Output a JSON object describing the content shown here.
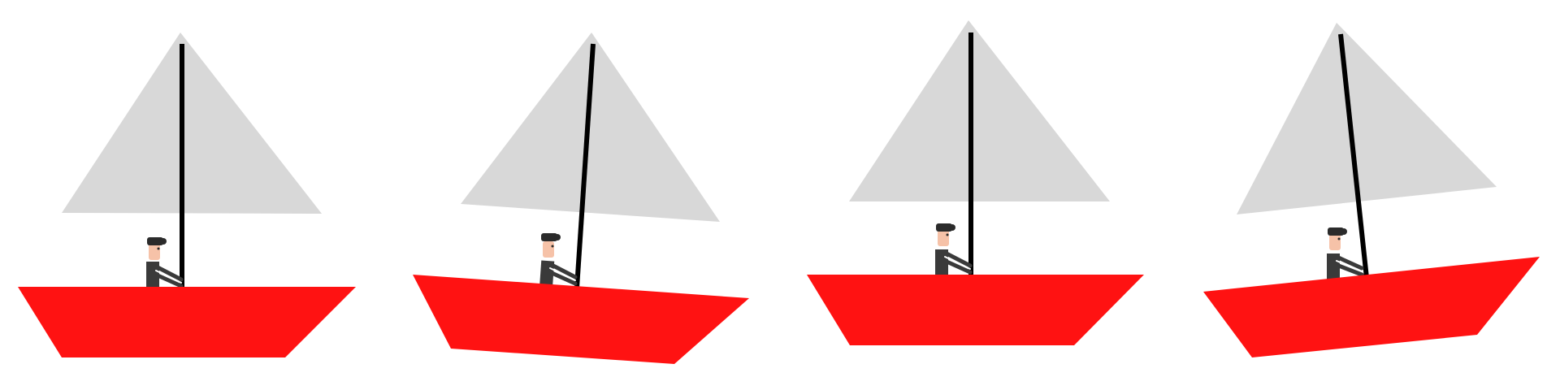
{
  "colors": {
    "background": "#ffffff",
    "hull": "#ff1212",
    "sail": "#d8d8d8",
    "mast": "#000000",
    "jacket": "#3a3a3a",
    "hair": "#2b2b2b",
    "skin": "#f6c2a8",
    "arm_stripe": "#ffffff"
  },
  "icons": {
    "boat": "sailboat-icon",
    "sail": "triangle-sail-icon",
    "mast": "mast-icon",
    "sailor": "sailor-icon"
  },
  "boats": [
    {
      "name": "sailboat-1-upright"
    },
    {
      "name": "sailboat-2-tilted-left"
    },
    {
      "name": "sailboat-3-upright"
    },
    {
      "name": "sailboat-4-tilted-right"
    }
  ]
}
